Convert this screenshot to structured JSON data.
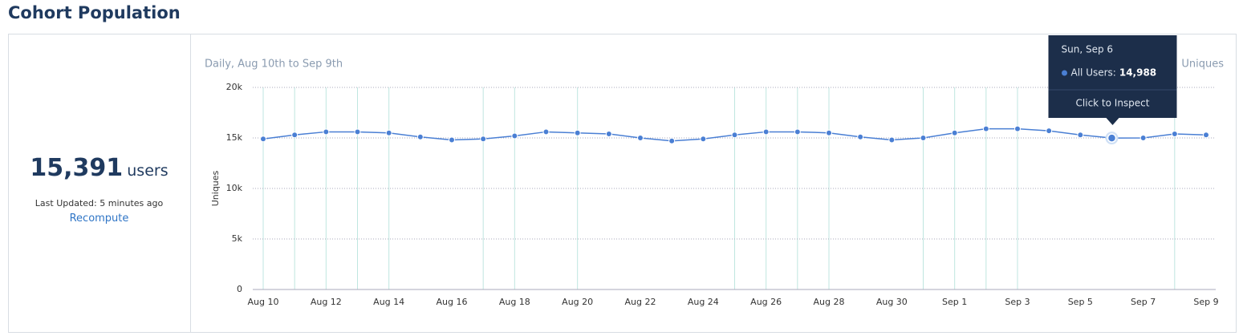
{
  "header": {
    "title": "Cohort Population"
  },
  "summary": {
    "count": "15,391",
    "unit": "users",
    "updated": "Last Updated: 5 minutes ago",
    "action": "Recompute"
  },
  "metric_selector": "Uniques",
  "chart_data": {
    "type": "line",
    "subtitle": "Daily, Aug 10th to Sep 9th",
    "y_label": "Uniques",
    "categories": [
      "Aug 10",
      null,
      "Aug 12",
      null,
      "Aug 14",
      null,
      "Aug 16",
      null,
      "Aug 18",
      null,
      "Aug 20",
      null,
      "Aug 22",
      null,
      "Aug 24",
      null,
      "Aug 26",
      null,
      "Aug 28",
      null,
      "Aug 30",
      null,
      "Sep 1",
      null,
      "Sep 3",
      null,
      "Sep 5",
      null,
      "Sep 7",
      null,
      "Sep 9"
    ],
    "values": [
      14900,
      15300,
      15600,
      15600,
      15500,
      15100,
      14800,
      14900,
      15200,
      15600,
      15500,
      15400,
      15000,
      14700,
      14900,
      15300,
      15600,
      15600,
      15500,
      15100,
      14800,
      15000,
      15500,
      15900,
      15900,
      15700,
      15300,
      14988,
      15000,
      15400,
      15300
    ],
    "value_labels": [
      null,
      null,
      null,
      null,
      null,
      null,
      null,
      null,
      null,
      null,
      null,
      null,
      null,
      null,
      null,
      null,
      null,
      null,
      null,
      null,
      null,
      null,
      null,
      null,
      null,
      null,
      null,
      "14,988",
      null,
      null,
      null
    ],
    "color": "#4a7fd4",
    "ylim": [
      0,
      20000
    ],
    "yticks": [
      0,
      {
        "value": 5000,
        "label": "5k"
      },
      {
        "value": 10000,
        "label": "10k"
      },
      {
        "value": 15000,
        "label": "15k"
      },
      {
        "value": 20000,
        "label": "20k"
      }
    ],
    "grid": true,
    "tooltip": {
      "index": 27,
      "date": "Sun, Sep 6",
      "series_label": "All Users:",
      "action": "Click to Inspect"
    }
  }
}
